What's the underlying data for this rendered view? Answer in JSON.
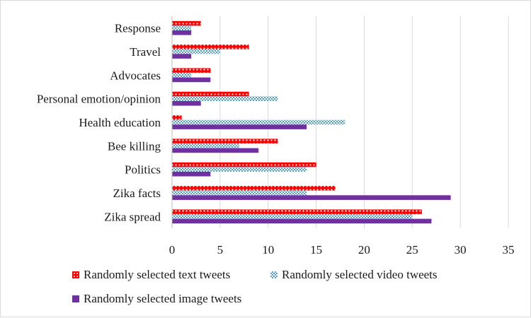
{
  "chart_data": {
    "type": "bar",
    "orientation": "horizontal",
    "title": "",
    "xlabel": "",
    "ylabel": "",
    "categories": [
      "Response",
      "Travel",
      "Advocates",
      "Personal emotion/opinion",
      "Health education",
      "Bee killing",
      "Politics",
      "Zika facts",
      "Zika spread"
    ],
    "series": [
      {
        "name": "Randomly selected text tweets",
        "color": "#ff0000",
        "pattern": "red-dots",
        "values": [
          3,
          8,
          4,
          8,
          1,
          11,
          15,
          17,
          26
        ]
      },
      {
        "name": "Randomly selected video tweets",
        "color": "#4f9fd6",
        "pattern": "blue-checker",
        "values": [
          2,
          5,
          2,
          11,
          18,
          7,
          14,
          14,
          25
        ]
      },
      {
        "name": "Randomly selected image tweets",
        "color": "#7030a0",
        "pattern": "solid",
        "values": [
          2,
          2,
          4,
          3,
          14,
          9,
          4,
          29,
          27
        ]
      }
    ],
    "xlim": [
      0,
      35
    ],
    "x_ticks": [
      "0",
      "5",
      "10",
      "15",
      "20",
      "25",
      "30",
      "35"
    ],
    "grid": true,
    "legend_position": "bottom"
  }
}
